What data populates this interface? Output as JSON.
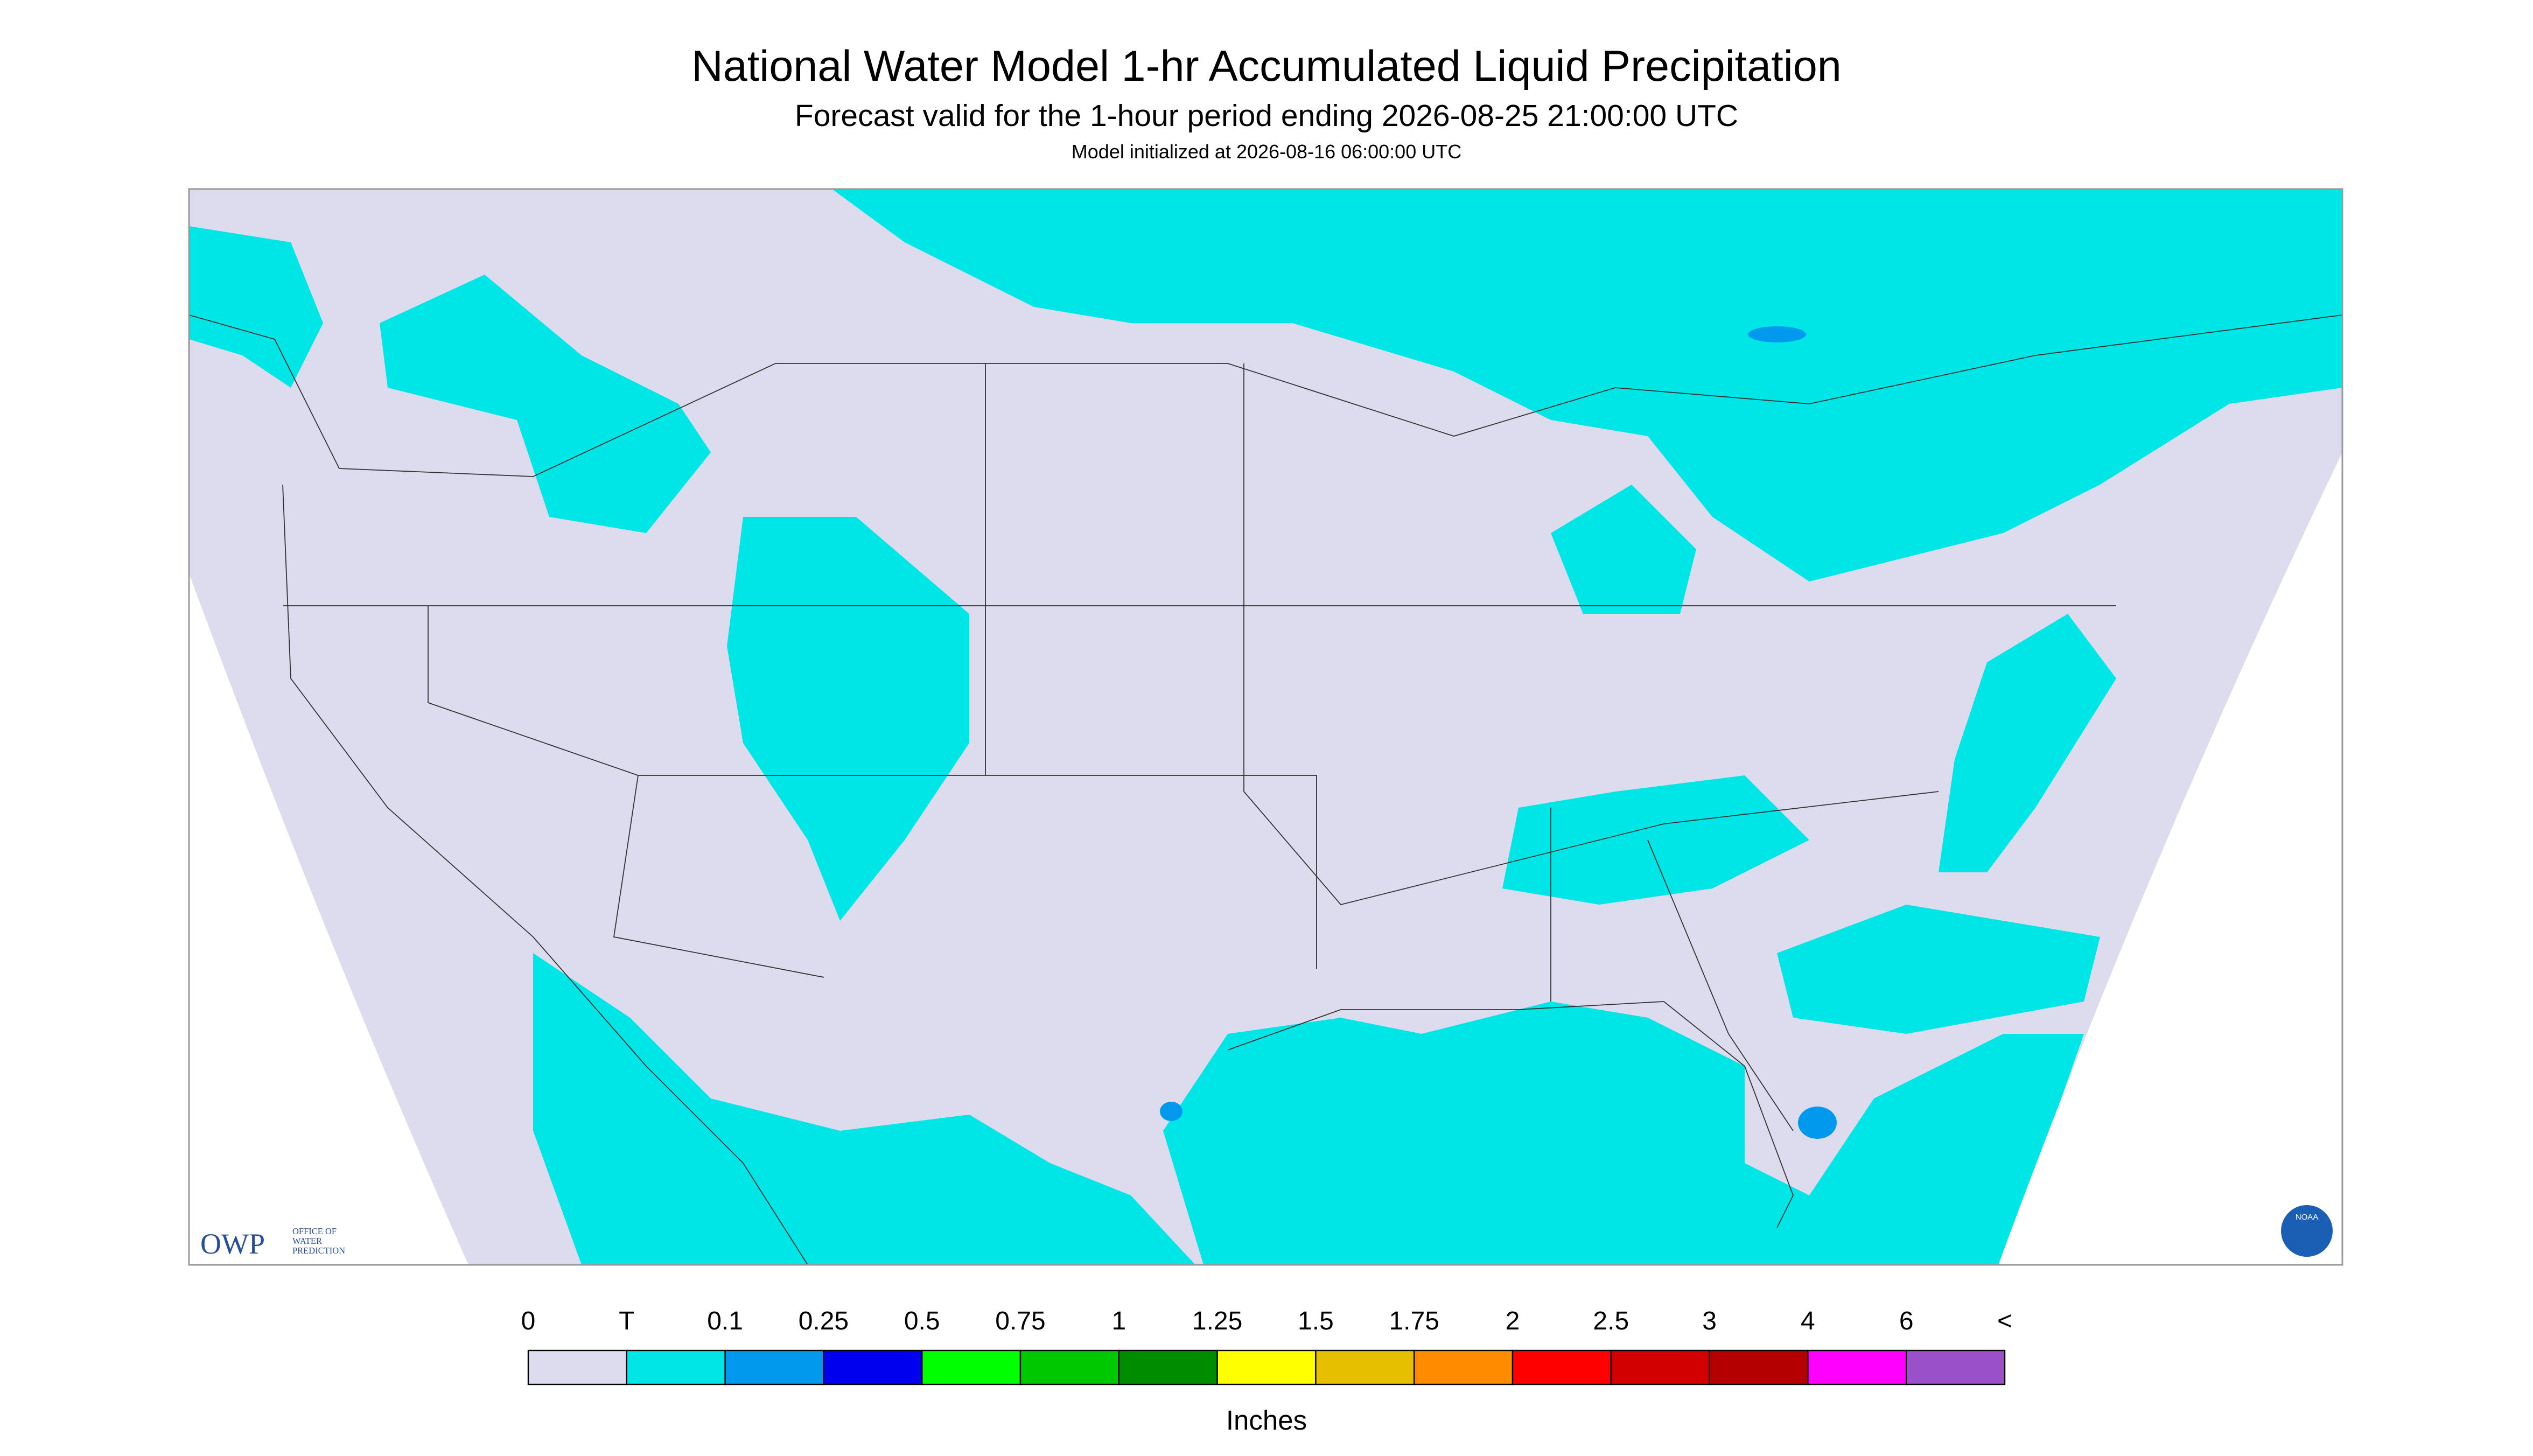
{
  "header": {
    "title": "National Water Model 1-hr Accumulated Liquid Precipitation",
    "subtitle": "Forecast valid for the 1-hour period ending 2026-08-25 21:00:00 UTC",
    "note": "Model initialized at 2026-08-16 06:00:00 UTC"
  },
  "logos": {
    "owp": "OWP",
    "owp_text": [
      "OFFICE OF",
      "WATER",
      "PREDICTION"
    ],
    "noaa": "NOAA"
  },
  "legend": {
    "labels": [
      "0",
      "T",
      "0.1",
      "0.25",
      "0.5",
      "0.75",
      "1",
      "1.25",
      "1.5",
      "1.75",
      "2",
      "2.5",
      "3",
      "4",
      "6",
      "<"
    ],
    "colors": [
      "#dcdcee",
      "#00e6e6",
      "#0099ee",
      "#0000ee",
      "#00ff00",
      "#00c800",
      "#008c00",
      "#ffff00",
      "#e6c000",
      "#ff8c00",
      "#ff0000",
      "#d20000",
      "#b40000",
      "#ff00ff",
      "#9a50c8"
    ],
    "unit": "Inches"
  }
}
